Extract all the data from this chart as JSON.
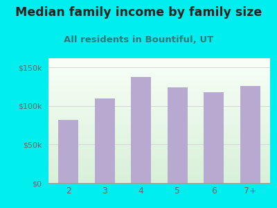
{
  "title": "Median family income by family size",
  "subtitle": "All residents in Bountiful, UT",
  "categories": [
    "2",
    "3",
    "4",
    "5",
    "6",
    "7+"
  ],
  "values": [
    82000,
    110000,
    138000,
    124000,
    118000,
    126000
  ],
  "bar_color": "#b8a9d0",
  "background_color": "#00EEEE",
  "title_color": "#222222",
  "subtitle_color": "#2a7a7a",
  "tick_color": "#666666",
  "yticks": [
    0,
    50000,
    100000,
    150000
  ],
  "ytick_labels": [
    "$0",
    "$50k",
    "$100k",
    "$150k"
  ],
  "ylim": [
    0,
    162000
  ],
  "title_fontsize": 12.5,
  "subtitle_fontsize": 9.5,
  "bar_width": 0.55
}
